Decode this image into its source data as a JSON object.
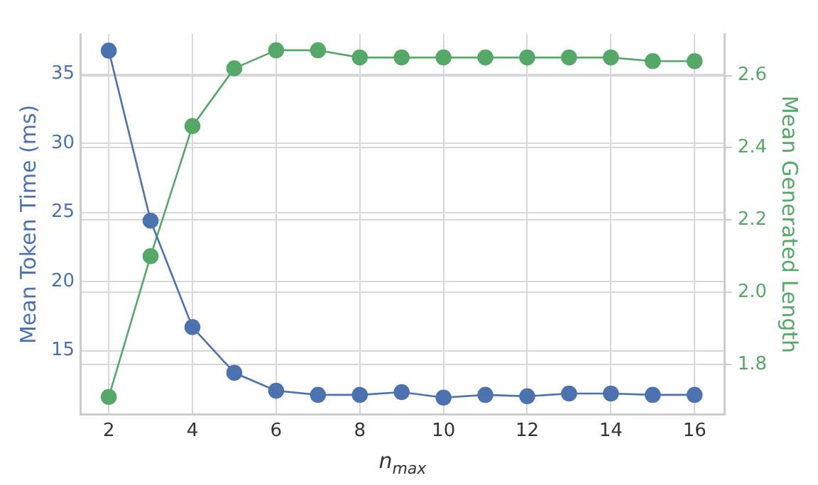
{
  "chart_data": {
    "type": "line",
    "xlabel": "n$_{max}$",
    "ylabel": "Mean Token Time (ms)",
    "y2label": "Mean Generated Length",
    "x": [
      2,
      3,
      4,
      5,
      6,
      7,
      8,
      9,
      10,
      11,
      12,
      13,
      14,
      15,
      16
    ],
    "series": [
      {
        "color": "#4c72b0",
        "values": [
          36.7,
          24.4,
          16.7,
          13.4,
          12.1,
          11.8,
          11.8,
          12.0,
          11.6,
          11.8,
          11.7,
          11.9,
          11.9,
          11.8,
          11.8
        ]
      },
      {
        "color": "#55a868",
        "axis": "y2",
        "values": [
          1.71,
          2.1,
          2.46,
          2.62,
          2.67,
          2.67,
          2.65,
          2.65,
          2.65,
          2.65,
          2.65,
          2.65,
          2.65,
          2.64,
          2.64
        ]
      }
    ],
    "xlim": [
      1.32,
      16.72
    ],
    "xticks": [
      2,
      4,
      6,
      8,
      10,
      12,
      14,
      16
    ],
    "ylim": [
      10.37,
      37.9
    ],
    "yticks": [
      15,
      20,
      25,
      30,
      35
    ],
    "y2lim": [
      1.661,
      2.715
    ],
    "y2ticks": [
      1.8,
      {
        "value": 2,
        "label": "2.0"
      },
      2.2,
      2.4,
      2.6
    ],
    "grid": true,
    "legend": false,
    "marker": "circle",
    "line_style": "solid"
  }
}
